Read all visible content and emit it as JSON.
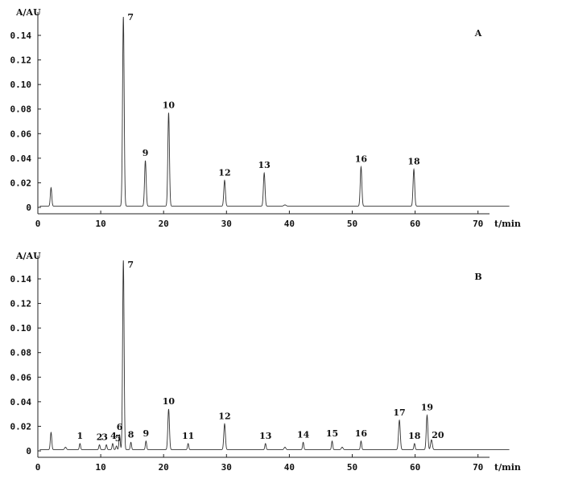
{
  "chart_data": [
    {
      "type": "line",
      "panel_label": "A",
      "xlabel": "t/min",
      "ylabel": "A/AU",
      "xlim": [
        0,
        75
      ],
      "ylim": [
        -0.002,
        0.16
      ],
      "x_ticks": [
        0,
        10,
        20,
        30,
        40,
        50,
        60,
        70
      ],
      "y_ticks": [
        0,
        0.02,
        0.04,
        0.06,
        0.08,
        0.1,
        0.12,
        0.14
      ],
      "y_tick_labels": [
        "0",
        "0.02",
        "0.04",
        "0.06",
        "0.08",
        "0.10",
        "0.12",
        "0.14"
      ],
      "baseline": 0.001,
      "peaks": [
        {
          "x": 2.1,
          "y": 0.016,
          "w": 0.25,
          "label": ""
        },
        {
          "x": 13.6,
          "y": 0.155,
          "w": 0.28,
          "label": "7"
        },
        {
          "x": 17.1,
          "y": 0.038,
          "w": 0.28,
          "label": "9"
        },
        {
          "x": 20.8,
          "y": 0.077,
          "w": 0.28,
          "label": "10"
        },
        {
          "x": 29.7,
          "y": 0.022,
          "w": 0.28,
          "label": "12"
        },
        {
          "x": 36.0,
          "y": 0.028,
          "w": 0.28,
          "label": "13"
        },
        {
          "x": 39.3,
          "y": 0.002,
          "w": 0.4,
          "label": ""
        },
        {
          "x": 51.4,
          "y": 0.033,
          "w": 0.28,
          "label": "16"
        },
        {
          "x": 59.8,
          "y": 0.031,
          "w": 0.28,
          "label": "18"
        }
      ]
    },
    {
      "type": "line",
      "panel_label": "B",
      "xlabel": "t/min",
      "ylabel": "A/AU",
      "xlim": [
        0,
        75
      ],
      "ylim": [
        -0.002,
        0.16
      ],
      "x_ticks": [
        0,
        10,
        20,
        30,
        40,
        50,
        60,
        70
      ],
      "y_ticks": [
        0,
        0.02,
        0.04,
        0.06,
        0.08,
        0.1,
        0.12,
        0.14
      ],
      "y_tick_labels": [
        "0",
        "0.02",
        "0.04",
        "0.06",
        "0.08",
        "0.10",
        "0.12",
        "0.14"
      ],
      "baseline": 0.001,
      "peaks": [
        {
          "x": 2.1,
          "y": 0.015,
          "w": 0.25,
          "label": ""
        },
        {
          "x": 4.4,
          "y": 0.003,
          "w": 0.3,
          "label": ""
        },
        {
          "x": 6.7,
          "y": 0.006,
          "w": 0.22,
          "label": "1"
        },
        {
          "x": 9.8,
          "y": 0.005,
          "w": 0.22,
          "label": "2"
        },
        {
          "x": 10.9,
          "y": 0.005,
          "w": 0.22,
          "label": "3"
        },
        {
          "x": 11.9,
          "y": 0.006,
          "w": 0.22,
          "label": "4"
        },
        {
          "x": 12.5,
          "y": 0.004,
          "w": 0.22,
          "label": "5"
        },
        {
          "x": 13.0,
          "y": 0.013,
          "w": 0.22,
          "label": "6"
        },
        {
          "x": 13.6,
          "y": 0.155,
          "w": 0.26,
          "label": "7"
        },
        {
          "x": 14.8,
          "y": 0.007,
          "w": 0.22,
          "label": "8"
        },
        {
          "x": 17.2,
          "y": 0.008,
          "w": 0.22,
          "label": "9"
        },
        {
          "x": 20.8,
          "y": 0.034,
          "w": 0.28,
          "label": "10"
        },
        {
          "x": 23.9,
          "y": 0.006,
          "w": 0.22,
          "label": "11"
        },
        {
          "x": 29.7,
          "y": 0.022,
          "w": 0.28,
          "label": "12"
        },
        {
          "x": 36.2,
          "y": 0.006,
          "w": 0.22,
          "label": "13"
        },
        {
          "x": 39.3,
          "y": 0.003,
          "w": 0.3,
          "label": ""
        },
        {
          "x": 42.2,
          "y": 0.007,
          "w": 0.22,
          "label": "14"
        },
        {
          "x": 46.8,
          "y": 0.008,
          "w": 0.22,
          "label": "15"
        },
        {
          "x": 48.4,
          "y": 0.003,
          "w": 0.3,
          "label": ""
        },
        {
          "x": 51.4,
          "y": 0.008,
          "w": 0.22,
          "label": "16"
        },
        {
          "x": 57.5,
          "y": 0.025,
          "w": 0.3,
          "label": "17"
        },
        {
          "x": 59.9,
          "y": 0.006,
          "w": 0.22,
          "label": "18"
        },
        {
          "x": 61.9,
          "y": 0.029,
          "w": 0.28,
          "label": "19"
        },
        {
          "x": 62.6,
          "y": 0.009,
          "w": 0.3,
          "label": "20"
        }
      ]
    }
  ]
}
